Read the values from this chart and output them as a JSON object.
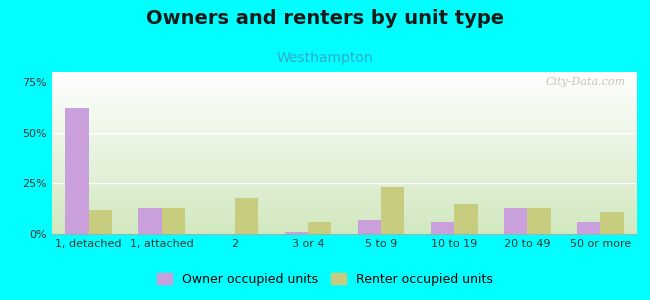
{
  "title": "Owners and renters by unit type",
  "subtitle": "Westhampton",
  "categories": [
    "1, detached",
    "1, attached",
    "2",
    "3 or 4",
    "5 to 9",
    "10 to 19",
    "20 to 49",
    "50 or more"
  ],
  "owner_values": [
    62,
    13,
    0,
    1,
    7,
    6,
    13,
    6
  ],
  "renter_values": [
    12,
    13,
    18,
    6,
    23,
    15,
    13,
    11
  ],
  "owner_color": "#c9a0dc",
  "renter_color": "#c8cc7e",
  "ylim": [
    0,
    80
  ],
  "yticks": [
    0,
    25,
    50,
    75
  ],
  "ytick_labels": [
    "0%",
    "25%",
    "50%",
    "75%"
  ],
  "background_color": "#00ffff",
  "plot_bg_top": "#ffffff",
  "plot_bg_bottom": "#d0e8c0",
  "watermark": "City-Data.com",
  "bar_width": 0.32,
  "title_fontsize": 14,
  "subtitle_fontsize": 10,
  "legend_fontsize": 9,
  "tick_fontsize": 8
}
